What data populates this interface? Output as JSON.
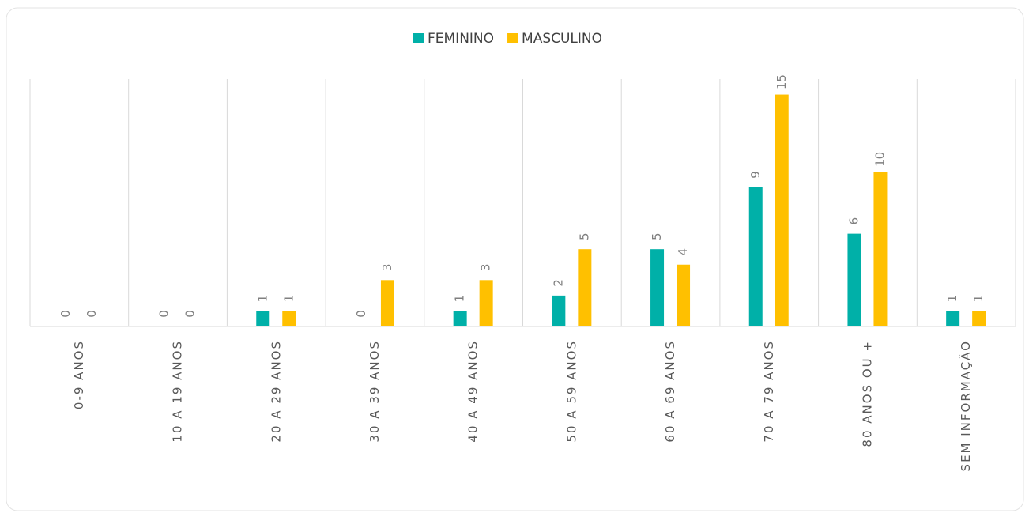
{
  "chart_data": {
    "type": "bar",
    "categories": [
      "0-9 ANOS",
      "10 A 19 ANOS",
      "20 A 29 ANOS",
      "30 A 39 ANOS",
      "40 A 49 ANOS",
      "50 A 59 ANOS",
      "60 A 69 ANOS",
      "70 A 79 ANOS",
      "80 ANOS OU +",
      "SEM INFORMAÇÃO"
    ],
    "series": [
      {
        "name": "FEMININO",
        "color": "#00b0a8",
        "values": [
          0,
          0,
          1,
          0,
          1,
          2,
          5,
          9,
          6,
          1
        ]
      },
      {
        "name": "MASCULINO",
        "color": "#ffc000",
        "values": [
          0,
          0,
          1,
          3,
          3,
          5,
          4,
          15,
          10,
          1
        ]
      }
    ],
    "ylim": [
      0,
      16
    ],
    "grid": true,
    "legend": "top"
  }
}
